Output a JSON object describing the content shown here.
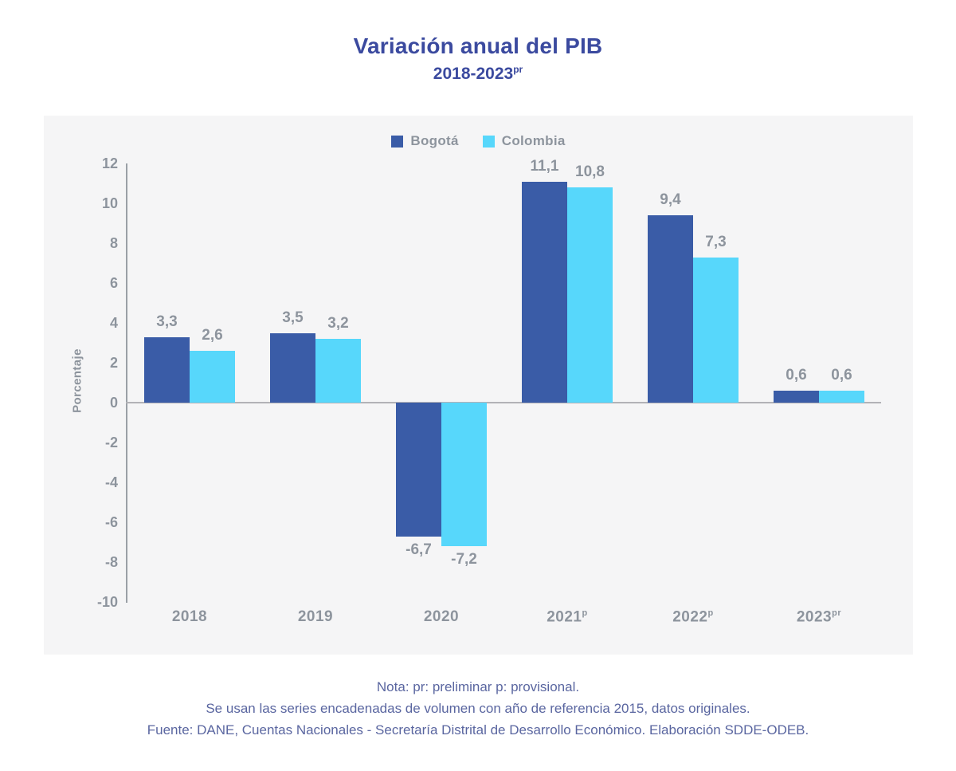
{
  "title": {
    "text": "Variación anual del PIB",
    "subtitle_base": "2018-2023",
    "subtitle_sup": "pr"
  },
  "legend": {
    "items": [
      {
        "name": "Bogotá",
        "color": "#3A5CA7"
      },
      {
        "name": "Colombia",
        "color": "#57D7FB"
      }
    ]
  },
  "chart_data": {
    "type": "bar",
    "title": "Variación anual del PIB 2018-2023pr",
    "xlabel": "",
    "ylabel": "Porcentaje",
    "ylim": [
      -10,
      12
    ],
    "ytick_step": 2,
    "grid": false,
    "legend_position": "top-center",
    "categories": [
      {
        "label": "2018",
        "sup": ""
      },
      {
        "label": "2019",
        "sup": ""
      },
      {
        "label": "2020",
        "sup": ""
      },
      {
        "label": "2021",
        "sup": "p"
      },
      {
        "label": "2022",
        "sup": "p"
      },
      {
        "label": "2023",
        "sup": "pr"
      }
    ],
    "series": [
      {
        "name": "Bogotá",
        "color": "#3A5CA7",
        "values": [
          3.3,
          3.5,
          -6.7,
          11.1,
          9.4,
          0.6
        ],
        "labels": [
          "3,3",
          "3,5",
          "-6,7",
          "11,1",
          "9,4",
          "0,6"
        ]
      },
      {
        "name": "Colombia",
        "color": "#57D7FB",
        "values": [
          2.6,
          3.2,
          -7.2,
          10.8,
          7.3,
          0.6
        ],
        "labels": [
          "2,6",
          "3,2",
          "-7,2",
          "10,8",
          "7,3",
          "0,6"
        ]
      }
    ]
  },
  "footer": {
    "line1": "Nota: pr: preliminar p: provisional.",
    "line2": "Se usan las series encadenadas de volumen con año de referencia 2015, datos originales.",
    "line3": "Fuente: DANE, Cuentas Nacionales - Secretaría Distrital de Desarrollo Económico. Elaboración SDDE-ODEB."
  },
  "colors": {
    "title": "#3B4A9F",
    "panel_background": "#F5F5F6",
    "axis_line": "#9AA0A6",
    "zero_line": "#B2B2B7",
    "tick_text": "#8D949D",
    "footer_text": "#5A66A0"
  }
}
